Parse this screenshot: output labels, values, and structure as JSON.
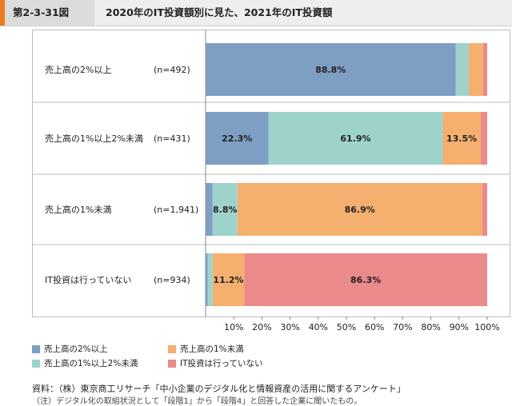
{
  "header": {
    "figure_no": "第2-3-31図",
    "title": "2020年のIT投資額別に見た、2021年のIT投資額"
  },
  "chart_data": {
    "type": "bar",
    "orientation": "horizontal",
    "stacked": true,
    "categories": [
      {
        "label": "売上高の2%以上",
        "n": "(n=492)"
      },
      {
        "label": "売上高の1%以上2%未満",
        "n": "(n=431)"
      },
      {
        "label": "売上高の1%未満",
        "n": "(n=1,941)"
      },
      {
        "label": "IT投資は行っていない",
        "n": "(n=934)"
      }
    ],
    "series": [
      {
        "name": "売上高の2%以上",
        "color": "#7f9ec4",
        "values": [
          88.8,
          22.3,
          2.5,
          0.7
        ]
      },
      {
        "name": "売上高の1%以上2%未満",
        "color": "#9dd3cb",
        "values": [
          4.7,
          61.9,
          8.8,
          1.8
        ]
      },
      {
        "name": "売上高の1%未満",
        "color": "#f5af6e",
        "values": [
          5.0,
          13.5,
          86.9,
          11.2
        ]
      },
      {
        "name": "IT投資は行っていない",
        "color": "#eb8a8a",
        "values": [
          1.5,
          2.3,
          1.8,
          86.3
        ]
      }
    ],
    "data_labels": [
      {
        "row": 0,
        "series": 0,
        "text": "88.8%"
      },
      {
        "row": 1,
        "series": 0,
        "text": "22.3%"
      },
      {
        "row": 1,
        "series": 1,
        "text": "61.9%"
      },
      {
        "row": 1,
        "series": 2,
        "text": "13.5%"
      },
      {
        "row": 2,
        "series": 1,
        "text": "8.8%"
      },
      {
        "row": 2,
        "series": 2,
        "text": "86.9%"
      },
      {
        "row": 3,
        "series": 2,
        "text": "11.2%"
      },
      {
        "row": 3,
        "series": 3,
        "text": "86.3%"
      }
    ],
    "x_ticks": [
      "10%",
      "20%",
      "30%",
      "40%",
      "50%",
      "60%",
      "70%",
      "80%",
      "90%",
      "100%"
    ],
    "xlim": [
      0,
      100
    ],
    "grid": false,
    "legend_position": "bottom"
  },
  "source": "資料：（株）東京商工リサーチ「中小企業のデジタル化と情報資産の活用に関するアンケート」",
  "note": "（注）デジタル化の取組状況として「段階1」から「段階4」と回答した企業に聞いたもの。"
}
